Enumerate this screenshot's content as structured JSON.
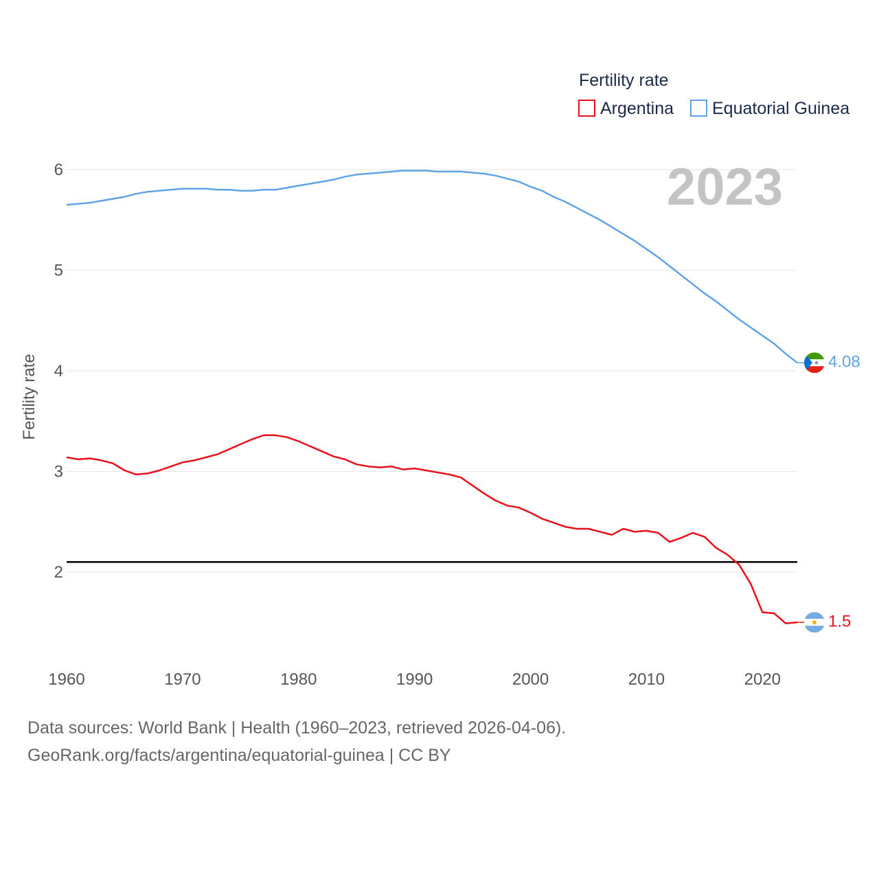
{
  "colors": {
    "argentina": "#e8111b",
    "equatorial_guinea": "#5fa4e4",
    "reference": "#000000",
    "grid": "#e6e6e6"
  },
  "chart_data": {
    "type": "line",
    "title": "Fertility rate",
    "ylabel": "Fertility rate",
    "xlabel": "",
    "year_label": "2023",
    "xlim": [
      1960,
      2023
    ],
    "ylim": [
      1.2,
      6.2
    ],
    "x_ticks": [
      1960,
      1970,
      1980,
      1990,
      2000,
      2010,
      2020
    ],
    "y_ticks": [
      2,
      3,
      4,
      5,
      6
    ],
    "reference_line": 2.1,
    "legend_position": "top-right",
    "x": [
      1960,
      1961,
      1962,
      1963,
      1964,
      1965,
      1966,
      1967,
      1968,
      1969,
      1970,
      1971,
      1972,
      1973,
      1974,
      1975,
      1976,
      1977,
      1978,
      1979,
      1980,
      1981,
      1982,
      1983,
      1984,
      1985,
      1986,
      1987,
      1988,
      1989,
      1990,
      1991,
      1992,
      1993,
      1994,
      1995,
      1996,
      1997,
      1998,
      1999,
      2000,
      2001,
      2002,
      2003,
      2004,
      2005,
      2006,
      2007,
      2008,
      2009,
      2010,
      2011,
      2012,
      2013,
      2014,
      2015,
      2016,
      2017,
      2018,
      2019,
      2020,
      2021,
      2022,
      2023
    ],
    "series": [
      {
        "name": "Argentina",
        "color_key": "argentina",
        "end_label": "1.5",
        "flag": "argentina-flag-icon",
        "values": [
          3.14,
          3.12,
          3.13,
          3.11,
          3.08,
          3.01,
          2.97,
          2.98,
          3.01,
          3.05,
          3.09,
          3.11,
          3.14,
          3.17,
          3.22,
          3.27,
          3.32,
          3.36,
          3.36,
          3.34,
          3.3,
          3.25,
          3.2,
          3.15,
          3.12,
          3.07,
          3.05,
          3.04,
          3.05,
          3.02,
          3.03,
          3.01,
          2.99,
          2.97,
          2.94,
          2.86,
          2.78,
          2.71,
          2.66,
          2.64,
          2.59,
          2.53,
          2.49,
          2.45,
          2.43,
          2.43,
          2.4,
          2.37,
          2.43,
          2.4,
          2.41,
          2.39,
          2.3,
          2.34,
          2.39,
          2.35,
          2.24,
          2.17,
          2.07,
          1.88,
          1.6,
          1.59,
          1.49,
          1.5
        ]
      },
      {
        "name": "Equatorial Guinea",
        "color_key": "equatorial_guinea",
        "end_label": "4.08",
        "flag": "equatorial-guinea-flag-icon",
        "values": [
          5.65,
          5.66,
          5.67,
          5.69,
          5.71,
          5.73,
          5.76,
          5.78,
          5.79,
          5.8,
          5.81,
          5.81,
          5.81,
          5.8,
          5.8,
          5.79,
          5.79,
          5.8,
          5.8,
          5.82,
          5.84,
          5.86,
          5.88,
          5.9,
          5.93,
          5.95,
          5.96,
          5.97,
          5.98,
          5.99,
          5.99,
          5.99,
          5.98,
          5.98,
          5.98,
          5.97,
          5.96,
          5.94,
          5.91,
          5.88,
          5.83,
          5.79,
          5.73,
          5.68,
          5.62,
          5.56,
          5.5,
          5.43,
          5.36,
          5.29,
          5.21,
          5.13,
          5.04,
          4.95,
          4.86,
          4.77,
          4.69,
          4.6,
          4.51,
          4.43,
          4.35,
          4.27,
          4.17,
          4.08
        ]
      }
    ]
  },
  "footer": {
    "line1": "Data sources: World Bank | Health (1960–2023, retrieved 2026-04-06).",
    "line2": "GeoRank.org/facts/argentina/equatorial-guinea | CC BY"
  }
}
